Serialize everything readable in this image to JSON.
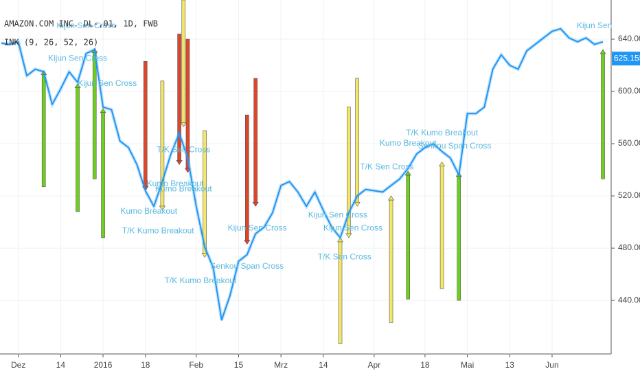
{
  "chart_data": {
    "type": "line",
    "title": "AMAZON.COM INC. DL-,01, 1D, FWB",
    "subtitle": "INK (9, 26, 52, 26)",
    "categories": [
      null,
      null,
      "Dez",
      null,
      null,
      null,
      null,
      "14",
      null,
      null,
      null,
      null,
      "2016",
      null,
      null,
      null,
      null,
      "18",
      null,
      null,
      null,
      null,
      null,
      "Feb",
      null,
      null,
      null,
      null,
      "15",
      null,
      null,
      null,
      null,
      "Mrz",
      null,
      null,
      null,
      null,
      "14",
      null,
      null,
      null,
      null,
      null,
      "Apr",
      null,
      null,
      null,
      null,
      null,
      "18",
      null,
      null,
      null,
      null,
      "Mai",
      null,
      null,
      null,
      null,
      "13",
      null,
      null,
      null,
      null,
      "Jun",
      null,
      null,
      null,
      null,
      null,
      null
    ],
    "series": [
      {
        "color": "#2196f3",
        "values": [
          637,
          636,
          638,
          612,
          617,
          615,
          590,
          602,
          615,
          607,
          629,
          632,
          588,
          586,
          562,
          557,
          544,
          524,
          512,
          531,
          552,
          568,
          549,
          512,
          481,
          465,
          425,
          444,
          470,
          475,
          491,
          496,
          507,
          528,
          531,
          523,
          512,
          523,
          509,
          496,
          488,
          507,
          520,
          525,
          524,
          523,
          528,
          533,
          541,
          552,
          557,
          560,
          554,
          549,
          536,
          583,
          583,
          588,
          617,
          628,
          620,
          617,
          631,
          636,
          641,
          646,
          648,
          641,
          638,
          641,
          636,
          638
        ]
      }
    ],
    "last_price": 625.155,
    "ylim": [
      399,
      670
    ],
    "yticks": [
      {
        "value": 440,
        "label": "440.000"
      },
      {
        "value": 480,
        "label": "480.000"
      },
      {
        "value": 520,
        "label": "520.000"
      },
      {
        "value": 560,
        "label": "560.000"
      },
      {
        "value": 600,
        "label": "600.000"
      },
      {
        "value": 640,
        "label": "640.000"
      }
    ],
    "grid": true,
    "signals": [
      {
        "index": 5,
        "from": 527,
        "to": 616,
        "color": "#6fcf1f"
      },
      {
        "index": 9,
        "from": 508,
        "to": 606,
        "color": "#6fcf1f"
      },
      {
        "index": 11,
        "from": 533,
        "to": 633,
        "color": "#6fcf1f"
      },
      {
        "index": 12,
        "from": 488,
        "to": 587,
        "color": "#6fcf1f"
      },
      {
        "index": 48,
        "from": 441,
        "to": 539,
        "color": "#6fcf1f"
      },
      {
        "index": 54,
        "from": 440,
        "to": 538,
        "color": "#6fcf1f"
      },
      {
        "index": 71,
        "from": 533,
        "to": 632,
        "color": "#6fcf1f"
      },
      {
        "index": 17,
        "from": 623,
        "to": 524,
        "color": "#e0452a"
      },
      {
        "index": 21,
        "from": 644,
        "to": 544,
        "color": "#e0452a"
      },
      {
        "index": 22,
        "from": 640,
        "to": 538,
        "color": "#e0452a"
      },
      {
        "index": 29,
        "from": 582,
        "to": 483,
        "color": "#e0452a"
      },
      {
        "index": 30,
        "from": 610,
        "to": 512,
        "color": "#e0452a"
      },
      {
        "index": 19,
        "from": 608,
        "to": 509,
        "color": "#f3e76a"
      },
      {
        "index": 21.5,
        "from": 670,
        "to": 573,
        "color": "#f3e76a"
      },
      {
        "index": 24,
        "from": 570,
        "to": 473,
        "color": "#f3e76a"
      },
      {
        "index": 40,
        "from": 407,
        "to": 488,
        "color": "#f3e76a"
      },
      {
        "index": 41,
        "from": 588,
        "to": 488,
        "color": "#f3e76a"
      },
      {
        "index": 42,
        "from": 610,
        "to": 512,
        "color": "#f3e76a"
      },
      {
        "index": 46,
        "from": 423,
        "to": 520,
        "color": "#f3e76a"
      },
      {
        "index": 52,
        "from": 449,
        "to": 546,
        "color": "#f3e76a"
      }
    ],
    "annotation_color": "#5ab8e0",
    "annotations": [
      {
        "text": "Kijun Sen Cross",
        "index": 10,
        "value": 650
      },
      {
        "text": "Kijun Sen Cross",
        "index": 9,
        "value": 625
      },
      {
        "text": "Kijun Sen Cross",
        "index": 12.5,
        "value": 606
      },
      {
        "text": "T/K Sen Cross",
        "index": 21.5,
        "value": 555
      },
      {
        "text": "Kumo Breakout",
        "index": 20.5,
        "value": 529
      },
      {
        "text": "Kumo Breakout",
        "index": 21.5,
        "value": 525
      },
      {
        "text": "Kumo Breakout",
        "index": 17.4,
        "value": 508
      },
      {
        "text": "T/K Kumo Breakout",
        "index": 18.5,
        "value": 493
      },
      {
        "text": "T/K Kumo Breakout",
        "index": 23.5,
        "value": 455
      },
      {
        "text": "Senkou Span Cross",
        "index": 29,
        "value": 466
      },
      {
        "text": "Kijun Sen Cross",
        "index": 30.2,
        "value": 495
      },
      {
        "text": "Kijun Sen Cross",
        "index": 39.7,
        "value": 505
      },
      {
        "text": "Kijun Sen Cross",
        "index": 41.5,
        "value": 495
      },
      {
        "text": "T/K Sen Cross",
        "index": 40.5,
        "value": 473
      },
      {
        "text": "T/K Sen Cross",
        "index": 45.5,
        "value": 542
      },
      {
        "text": "T/K Kumo Breakout",
        "index": 52,
        "value": 568
      },
      {
        "text": "Kumo Breakout",
        "index": 48,
        "value": 560
      },
      {
        "text": "Senkou Span Cross",
        "index": 53.5,
        "value": 558
      },
      {
        "text": "Kijun Sen",
        "index": 70,
        "value": 650
      }
    ]
  }
}
